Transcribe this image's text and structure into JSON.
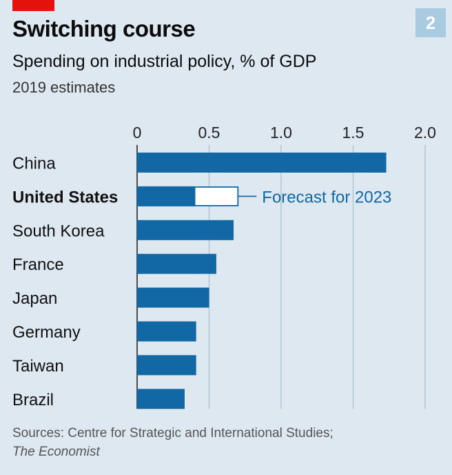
{
  "header": {
    "badge": "2",
    "title": "Switching course",
    "subtitle": "Spending on industrial policy, % of GDP",
    "note": "2019 estimates"
  },
  "chart_data": {
    "type": "bar",
    "orientation": "horizontal",
    "categories": [
      "China",
      "United States",
      "South Korea",
      "France",
      "Japan",
      "Germany",
      "Taiwan",
      "Brazil"
    ],
    "highlighted_category": "United States",
    "series": [
      {
        "values": [
          1.73,
          0.4,
          0.67,
          0.55,
          0.5,
          0.41,
          0.41,
          0.33
        ]
      }
    ],
    "forecast": {
      "category": "United States",
      "value": 0.7,
      "label": "Forecast for 2023"
    },
    "xlim": [
      0,
      2.0
    ],
    "ticks": [
      0,
      0.5,
      1.0,
      1.5,
      2.0
    ],
    "tick_labels": [
      "0",
      "0.5",
      "1.0",
      "1.5",
      "2.0"
    ],
    "grid": true,
    "axis_position": "top"
  },
  "footer": {
    "source_line1": "Sources: Centre for Strategic and International Studies;",
    "source_line2": "The Economist"
  },
  "colors": {
    "background": "#dde8f0",
    "bar": "#1168a5",
    "gridline": "#a9bccb",
    "accent_red": "#e3120b",
    "badge": "#a8cbe0"
  }
}
